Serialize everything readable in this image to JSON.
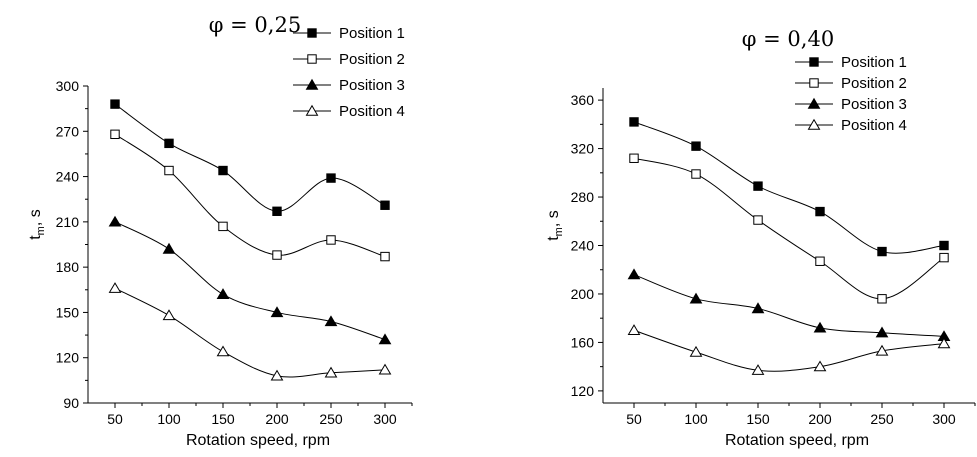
{
  "chart_data": [
    {
      "type": "line",
      "title": "φ = 0,25",
      "xlabel": "Rotation speed, rpm",
      "ylabel_main": "t",
      "ylabel_sub": "m",
      "ylabel_unit": ", s",
      "x": [
        50,
        100,
        150,
        200,
        250,
        300
      ],
      "xticks": [
        50,
        100,
        150,
        200,
        250,
        300
      ],
      "xlim": [
        25,
        325
      ],
      "ylim": [
        90,
        300
      ],
      "yticks": [
        90,
        120,
        150,
        180,
        210,
        240,
        270,
        300
      ],
      "grid": false,
      "legend_position": "top-right",
      "series": [
        {
          "name": "Position 1",
          "marker": "square-filled",
          "values": [
            288,
            262,
            244,
            217,
            239,
            221
          ]
        },
        {
          "name": "Position 2",
          "marker": "square-open",
          "values": [
            268,
            244,
            207,
            188,
            198,
            187
          ]
        },
        {
          "name": "Position 3",
          "marker": "triangle-filled",
          "values": [
            210,
            192,
            162,
            150,
            144,
            132
          ]
        },
        {
          "name": "Position 4",
          "marker": "triangle-open",
          "values": [
            166,
            148,
            124,
            108,
            110,
            112
          ]
        }
      ]
    },
    {
      "type": "line",
      "title": "φ = 0,40",
      "xlabel": "Rotation speed, rpm",
      "ylabel_main": "t",
      "ylabel_sub": "m",
      "ylabel_unit": ", s",
      "x": [
        50,
        100,
        150,
        200,
        250,
        300
      ],
      "xticks": [
        50,
        100,
        150,
        200,
        250,
        300
      ],
      "xlim": [
        25,
        325
      ],
      "ylim": [
        110,
        370
      ],
      "yticks": [
        120,
        160,
        200,
        240,
        280,
        320,
        360
      ],
      "grid": false,
      "legend_position": "top-right",
      "series": [
        {
          "name": "Position 1",
          "marker": "square-filled",
          "values": [
            342,
            322,
            289,
            268,
            235,
            240
          ]
        },
        {
          "name": "Position 2",
          "marker": "square-open",
          "values": [
            312,
            299,
            261,
            227,
            196,
            230
          ]
        },
        {
          "name": "Position 3",
          "marker": "triangle-filled",
          "values": [
            216,
            196,
            188,
            172,
            168,
            165
          ]
        },
        {
          "name": "Position 4",
          "marker": "triangle-open",
          "values": [
            170,
            152,
            137,
            140,
            153,
            159
          ]
        }
      ]
    }
  ]
}
